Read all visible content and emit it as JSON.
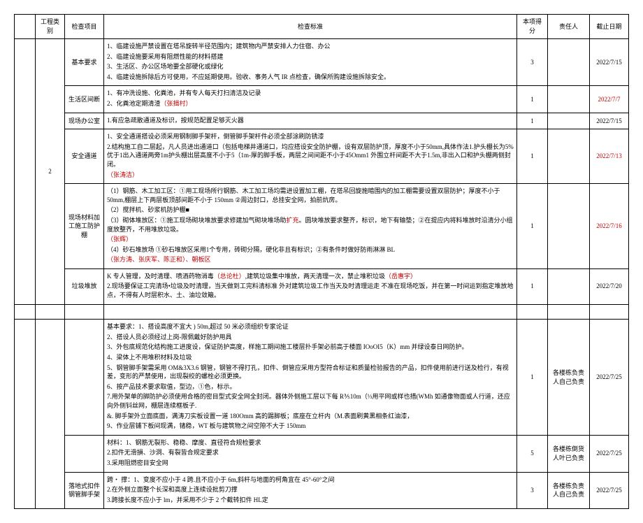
{
  "header": {
    "col1": "",
    "col2": "工程类别",
    "col3": "检查项目",
    "col4": "检查标准",
    "col5": "本项得分",
    "col6": "责任人",
    "col7": "截止日期"
  },
  "category_num": "2",
  "rows": [
    {
      "item": "基本要求",
      "std": [
        {
          "t": "1、临建设施严禁设置在塔吊旋转半径范围内；建筑物内严禁安排人力住宿、办公"
        },
        {
          "t": "2、临建设施要采用有阻燃性能的材料搭建"
        },
        {
          "t": "3、生活区、办公区场地要全部硬化或绿化"
        },
        {
          "t": "4、临建设施拆除后方可使用，不应延期使用。验收、事务人气 IR 点检查，确保所购建设施拆除安全。"
        }
      ],
      "score": "3",
      "resp": "",
      "date": "2022/7/15"
    },
    {
      "item": "生活区间断",
      "std": [
        {
          "t": "1、有冲洗设施、化粪池，并有专人每天打扫清洁及记录"
        },
        {
          "t": "2、化粪池定期清渣（张揖村）",
          "red": true,
          "redPart": "（张揖村）"
        }
      ],
      "score": "1",
      "resp": "",
      "date": "2022/7/7",
      "dateRed": true
    },
    {
      "item": "现场办公室",
      "std": [
        {
          "t": "1.有应急疏散通道及标识，按规范配置足够灭火器"
        }
      ],
      "score": "1",
      "resp": "",
      "date": "2022/7/15"
    },
    {
      "item": "安全通道",
      "std": [
        {
          "t": "1、安全通道搭设必须采用钢制脚手架杆，倒管脚手架杆件必须全部涂刷防锈漆"
        },
        {
          "t": "2.结构施工自二层起，凡人员进出通道口（包括电梯井通道口，均应搭设安全防护棚，设有双层防护顶，厚度不小于50mm,具体作法1.护头棚长为5%优于1出入通道两旁1m护头棚出层高度不小于5（1m-厚的脚手板，两层之间间距不小于45Omm1 外围立杆间距不大于1.5m,非出入口和护头棚两侧封闭。",
          "mixed": true
        },
        {
          "t": "（张涛洁）",
          "red": true
        }
      ],
      "score": "1",
      "resp": "",
      "date": "2022/7/13",
      "dateRed": true
    },
    {
      "item": "现场材料加工施工防护棚",
      "std": [
        {
          "t": "（1）钢筋、木工加工区：①用工现场所行钢筋、木工加工场均需进设置加工棚，在塔吊回旋施暗围内的加工棚需要设置双层防护；厚度不小于 50mm,棚层上下两层板顶部间距不小于 150mm ②周边封口，总挂安全网，拍前炕房。"
        },
        {
          "t": "（2）搅拌机、砂浆机防护棚■"
        },
        {
          "t_pre": "（3）砌体堆放区：①施工现场砌块堆放要求修建加气砌块堆场助",
          "t_red": "扩充",
          "t_post": "。圆块堆放要求整齐，标识，地下有输垫；②在提应内将料堆放时沿清分小组度放整齐，不用堆放垃圾。",
          "split": true
        },
        {
          "t_pre": "",
          "t_red": "（张辉）",
          "t_post": "",
          "split": true
        },
        {
          "t": "（4）砂石堆放场 ①砂石堆放区采用1个专用，砖砌分隔，硬化非且有标识；②有条件时做好防雨淋淋 BL"
        },
        {
          "t": "（张方涛、张庆军、陈正和）、朝板区",
          "red": true
        }
      ],
      "score": "1",
      "resp": "",
      "date": "2022/7/16",
      "dateRed": true
    },
    {
      "item": "垃圾堆放",
      "std": [
        {
          "t_pre": "K 专人管理，及时清理、喷洒药物消毒",
          "t_red": "（总论杜）",
          "t_post": ",建筑垃圾集中堆放，两天清理一次，禁止堆积垃圾",
          "t_red2": "（岳惠宇）",
          "split2": true
        },
        {
          "t": "2.现场要保证工完清场•垃圾及时清理，当天做到工完料清标准 外对建筑垃圾工作当天及时清理运走 不准在现场吃饭，并在第一时间运到指定堆放地点，不得有人时层积水、土、油垃敛簸。"
        }
      ],
      "score": "1",
      "resp": "",
      "date": "2022/7/20"
    }
  ],
  "blank_row_score": "",
  "section2": [
    {
      "item": "",
      "std": [
        {
          "t": "基本要求：1、搭设高度不宜大 ) 50m,超过 50 米必须组织专家论证"
        },
        {
          "t": "2、搭设人员必须经过上岗-限佩戴好防护用具"
        },
        {
          "t": "3、外包底规范化结构施工进度设，保证防护高度，样施工期间施工楼层扑手架必前高于楼面 IOoOI5（K）mm 并绿设泰日网防护。"
        },
        {
          "t": "4、梁体上不用堆积材料及垃圾"
        },
        {
          "t": "5、钢管脚手架需采用 OM&3X3.6 钢管，钢管不得打孔，扣件、倒管应采用方型符合标证和质量检验报告的产品，扣件使用前进行送及检行，有视差，变形的严禁使用，出现裂绞的螺栓必须更换。"
        },
        {
          "t": "6、按产品技术要求取值，型边，①色，标示。"
        },
        {
          "t": "7.用外架单的脚防护必须使用合格的密目型式安全网全封闭。器体外侧施工层以下每 R⅗10m（⅓用平网或样也措(WMh 如通像物面或人行道，还应向外侧钭丝网，棚层连续框板子."
        },
        {
          "t": "&. 脚手架外立面底面，满涛刀实板设置一道 180Omm 高的踢脚板；底座在立杆内（M.表面刷黄黑相条红油漆，"
        },
        {
          "t": "9、作业层铺下板间现满，锗稳，WT 板与建筑物之间空隙不大于 150mm"
        }
      ],
      "score": "1",
      "resp": "各楼栋负责人自己负责",
      "date": "2022/7/25"
    },
    {
      "item": "",
      "std": [
        {
          "t": "材料：1、钢筋无裂形、稳稳、摩度、直径符合规检要求"
        },
        {
          "t": "2.扣件无滑損、沙洞、有裂皆合规定要求"
        },
        {
          "t": "3.采用阻燃密目安全网"
        }
      ],
      "score": "5",
      "resp": "各楼栋倒货人叶已负责",
      "date": "2022/7/25"
    },
    {
      "item": "落地式扣件钢管脚手架",
      "std": [
        {
          "t": "跨・ 撑：1、变度不应小于 4 跨.且不应小于 6m,斜杆与地面的柯角宜在 45°-60°之间"
        },
        {
          "t": "2.在外侧立面整个长深和高度上连续设批剪刀撑"
        },
        {
          "t": "3.跨接长度不应小于 lm，并采用不少于 2 个截转扣件 HL定"
        }
      ],
      "score": "3",
      "resp": "各楼栋负责人自己负责",
      "date": "2022/7/25"
    }
  ]
}
